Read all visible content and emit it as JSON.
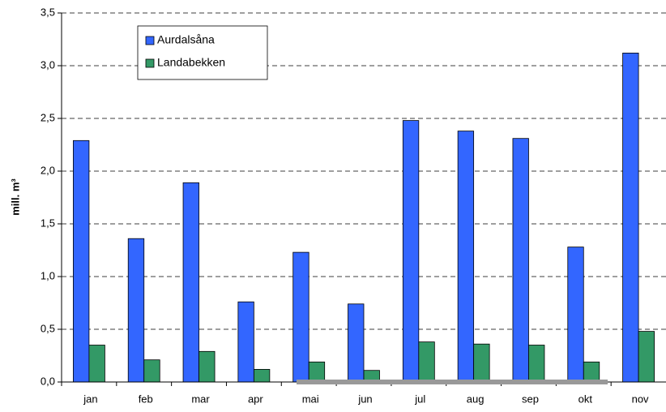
{
  "chart_data": {
    "type": "bar",
    "y_label": "mill. m³",
    "categories": [
      "jan",
      "feb",
      "mar",
      "apr",
      "mai",
      "jun",
      "jul",
      "aug",
      "sep",
      "okt",
      "nov"
    ],
    "series": [
      {
        "name": "Aurdalsåna",
        "color": "#3366ff",
        "values": [
          2.29,
          1.36,
          1.89,
          0.76,
          1.23,
          0.74,
          2.48,
          2.38,
          2.31,
          1.28,
          3.12
        ]
      },
      {
        "name": "Landabekken",
        "color": "#339966",
        "values": [
          0.35,
          0.21,
          0.29,
          0.12,
          0.19,
          0.11,
          0.38,
          0.36,
          0.35,
          0.19,
          0.48
        ]
      }
    ],
    "ylim": [
      0,
      3.5
    ],
    "yticks": [
      {
        "value": 0,
        "label": "0,0"
      },
      {
        "value": 0.5,
        "label": "0,5"
      },
      {
        "value": 1,
        "label": "1,0"
      },
      {
        "value": 1.5,
        "label": "1,5"
      },
      {
        "value": 2,
        "label": "2,0"
      },
      {
        "value": 2.5,
        "label": "2,5"
      },
      {
        "value": 3,
        "label": "3,0"
      },
      {
        "value": 3.5,
        "label": "3,5"
      }
    ],
    "grid": true
  }
}
